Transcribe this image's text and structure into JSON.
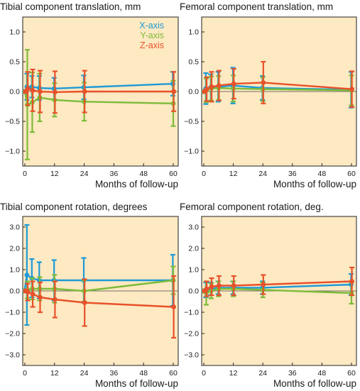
{
  "colors": {
    "x_axis": "#1e9ad6",
    "y_axis": "#7dbb3a",
    "z_axis": "#e8512a",
    "plot_bg": "#fde9c2"
  },
  "legend": [
    "X-axis",
    "Y-axis",
    "Z-axis"
  ],
  "chart_data": [
    {
      "type": "line",
      "title": "Tibial component translation, mm",
      "xlabel": "Months of follow-up",
      "ylabel": "",
      "xlim": [
        0,
        60
      ],
      "ylim": [
        -1.25,
        1.25
      ],
      "xticks": [
        0,
        12,
        24,
        36,
        48,
        60
      ],
      "yticks": [
        -1.0,
        -0.5,
        0.0,
        0.5,
        1.0
      ],
      "yticklabels": [
        "−1.0",
        "−0.5",
        "0.0",
        "0.5",
        "1.0"
      ],
      "x": [
        0,
        1,
        3,
        6,
        12,
        24,
        60
      ],
      "legend_position": "top-right",
      "series": [
        {
          "name": "X-axis",
          "values": [
            0.0,
            0.08,
            0.08,
            0.06,
            0.05,
            0.07,
            0.13
          ],
          "err": [
            0,
            0.22,
            0.18,
            0.2,
            0.18,
            0.2,
            0.2
          ]
        },
        {
          "name": "Y-axis",
          "values": [
            0.0,
            -0.22,
            -0.18,
            -0.1,
            -0.14,
            -0.17,
            -0.2
          ],
          "err": [
            0,
            0.92,
            0.5,
            0.4,
            0.28,
            0.32,
            0.38
          ]
        },
        {
          "name": "Z-axis",
          "values": [
            0.0,
            0.05,
            0.02,
            0.0,
            -0.01,
            0.0,
            0.0
          ],
          "err": [
            0,
            0.28,
            0.35,
            0.35,
            0.35,
            0.35,
            0.33
          ]
        }
      ]
    },
    {
      "type": "line",
      "title": "Femoral component translation, mm",
      "xlabel": "Months of follow-up",
      "ylabel": "",
      "xlim": [
        0,
        60
      ],
      "ylim": [
        -1.25,
        1.25
      ],
      "xticks": [
        0,
        12,
        24,
        36,
        48,
        60
      ],
      "yticks": [
        -1.0,
        -0.5,
        0.0,
        0.5,
        1.0
      ],
      "yticklabels": [
        "−1.0",
        "−0.5",
        "0.0",
        "0.5",
        "1.0"
      ],
      "x": [
        0,
        1,
        3,
        6,
        12,
        24,
        60
      ],
      "series": [
        {
          "name": "X-axis",
          "values": [
            0.0,
            0.05,
            0.07,
            0.08,
            0.1,
            0.06,
            0.03
          ],
          "err": [
            0,
            0.26,
            0.22,
            0.25,
            0.3,
            0.2,
            0.3
          ]
        },
        {
          "name": "Y-axis",
          "values": [
            0.0,
            0.02,
            0.05,
            0.06,
            0.05,
            0.04,
            0.02
          ],
          "err": [
            0,
            0.2,
            0.2,
            0.2,
            0.22,
            0.2,
            0.25
          ]
        },
        {
          "name": "Z-axis",
          "values": [
            0.0,
            0.04,
            0.08,
            0.1,
            0.13,
            0.15,
            0.04
          ],
          "err": [
            0,
            0.2,
            0.25,
            0.25,
            0.25,
            0.35,
            0.3
          ]
        }
      ]
    },
    {
      "type": "line",
      "title": "Tibial component rotation, degrees",
      "xlabel": "Months of follow-up",
      "ylabel": "",
      "xlim": [
        0,
        60
      ],
      "ylim": [
        -3.5,
        3.5
      ],
      "xticks": [
        0,
        12,
        24,
        36,
        48,
        60
      ],
      "yticks": [
        -3.0,
        -2.0,
        -1.0,
        0.0,
        1.0,
        2.0,
        3.0
      ],
      "yticklabels": [
        "−3.0",
        "−2.0",
        "−1.0",
        "0.0",
        "1.0",
        "2.0",
        "3.0"
      ],
      "x": [
        0,
        1,
        3,
        6,
        12,
        24,
        60
      ],
      "series": [
        {
          "name": "X-axis",
          "values": [
            0.0,
            0.75,
            0.6,
            0.5,
            0.5,
            0.5,
            0.5
          ],
          "err": [
            0,
            2.35,
            0.9,
            0.85,
            0.95,
            1.05,
            1.2
          ]
        },
        {
          "name": "Y-axis",
          "values": [
            0.0,
            0.05,
            0.1,
            0.1,
            0.1,
            0.0,
            0.5
          ],
          "err": [
            0,
            0.4,
            0.5,
            0.55,
            0.65,
            0.5,
            0.65
          ]
        },
        {
          "name": "Z-axis",
          "values": [
            0.0,
            -0.05,
            -0.15,
            -0.3,
            -0.4,
            -0.55,
            -0.75
          ],
          "err": [
            0,
            0.4,
            0.6,
            0.7,
            0.85,
            1.1,
            1.45
          ]
        }
      ]
    },
    {
      "type": "line",
      "title": "Femoral component rotation, deg.",
      "xlabel": "Months of follow-up",
      "ylabel": "",
      "xlim": [
        0,
        60
      ],
      "ylim": [
        -3.5,
        3.5
      ],
      "xticks": [
        0,
        12,
        24,
        36,
        48,
        60
      ],
      "yticks": [
        -3.0,
        -2.0,
        -1.0,
        0.0,
        1.0,
        2.0,
        3.0
      ],
      "yticklabels": [
        "−3.0",
        "−2.0",
        "−1.0",
        "0.0",
        "1.0",
        "2.0",
        "3.0"
      ],
      "x": [
        0,
        1,
        3,
        6,
        12,
        24,
        60
      ],
      "series": [
        {
          "name": "X-axis",
          "values": [
            0.0,
            0.05,
            0.1,
            0.15,
            0.15,
            0.15,
            0.3
          ],
          "err": [
            0,
            0.35,
            0.3,
            0.3,
            0.3,
            0.3,
            0.5
          ]
        },
        {
          "name": "Y-axis",
          "values": [
            0.0,
            -0.1,
            0.0,
            0.1,
            0.1,
            0.05,
            -0.1
          ],
          "err": [
            0,
            0.55,
            0.35,
            0.35,
            0.35,
            0.35,
            0.5
          ]
        },
        {
          "name": "Z-axis",
          "values": [
            0.0,
            0.1,
            0.2,
            0.25,
            0.25,
            0.3,
            0.45
          ],
          "err": [
            0,
            0.35,
            0.4,
            0.45,
            0.45,
            0.45,
            0.65
          ]
        }
      ]
    }
  ]
}
